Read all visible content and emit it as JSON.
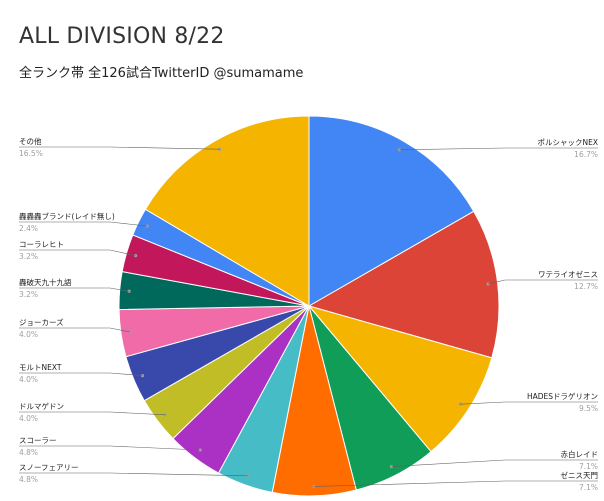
{
  "chart_data": {
    "type": "pie",
    "title": "ALL DIVISION 8/22",
    "subtitle": "全ランク帯 全126試合TwitterID @sumamame",
    "slices": [
      {
        "label": "ポルシャックNEX",
        "pct_text": "16.7%",
        "value": 16.7,
        "color": "#4285f4"
      },
      {
        "label": "ワテライオゼニス",
        "pct_text": "12.7%",
        "value": 12.7,
        "color": "#db4437"
      },
      {
        "label": "HADESドラゲリオン",
        "pct_text": "9.5%",
        "value": 9.5,
        "color": "#f4b400"
      },
      {
        "label": "赤白レイド",
        "pct_text": "7.1%",
        "value": 7.1,
        "color": "#0f9d58"
      },
      {
        "label": "ゼニス天門",
        "pct_text": "7.1%",
        "value": 7.1,
        "color": "#ff6d00"
      },
      {
        "label": "スノーフェアリー",
        "pct_text": "4.8%",
        "value": 4.8,
        "color": "#46bdc6"
      },
      {
        "label": "スコーラー",
        "pct_text": "4.8%",
        "value": 4.8,
        "color": "#ab30c4"
      },
      {
        "label": "ドルマゲドン",
        "pct_text": "4.0%",
        "value": 4.0,
        "color": "#c0bd27"
      },
      {
        "label": "モルトNEXT",
        "pct_text": "4.0%",
        "value": 4.0,
        "color": "#3949ab"
      },
      {
        "label": "ジョーカーズ",
        "pct_text": "4.0%",
        "value": 4.0,
        "color": "#f06ba8"
      },
      {
        "label": "轟破天九十九語",
        "pct_text": "3.2%",
        "value": 3.2,
        "color": "#00695c"
      },
      {
        "label": "コーラレヒト",
        "pct_text": "3.2%",
        "value": 3.2,
        "color": "#c2185b"
      },
      {
        "label": "轟轟轟ブランド(レイド無し)",
        "pct_text": "2.4%",
        "value": 2.4,
        "color": "#4285f4"
      },
      {
        "label": "その他",
        "pct_text": "16.5%",
        "value": 16.5,
        "color": "#f4b400"
      }
    ]
  }
}
